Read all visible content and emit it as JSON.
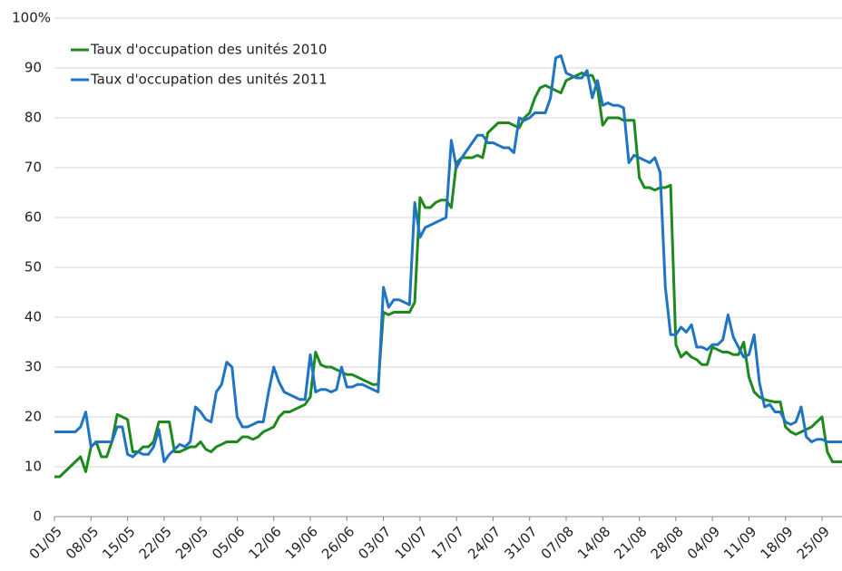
{
  "chart_data": {
    "type": "line",
    "categories": [
      "01/05",
      null,
      null,
      null,
      null,
      null,
      null,
      "08/05",
      null,
      null,
      null,
      null,
      null,
      null,
      "15/05",
      null,
      null,
      null,
      null,
      null,
      null,
      "22/05",
      null,
      null,
      null,
      null,
      null,
      null,
      "29/05",
      null,
      null,
      null,
      null,
      null,
      null,
      "05/06",
      null,
      null,
      null,
      null,
      null,
      null,
      "12/06",
      null,
      null,
      null,
      null,
      null,
      null,
      "19/06",
      null,
      null,
      null,
      null,
      null,
      null,
      "26/06",
      null,
      null,
      null,
      null,
      null,
      null,
      "03/07",
      null,
      null,
      null,
      null,
      null,
      null,
      "10/07",
      null,
      null,
      null,
      null,
      null,
      null,
      "17/07",
      null,
      null,
      null,
      null,
      null,
      null,
      "24/07",
      null,
      null,
      null,
      null,
      null,
      null,
      "31/07",
      null,
      null,
      null,
      null,
      null,
      null,
      "07/08",
      null,
      null,
      null,
      null,
      null,
      null,
      "14/08",
      null,
      null,
      null,
      null,
      null,
      null,
      "21/08",
      null,
      null,
      null,
      null,
      null,
      null,
      "28/08",
      null,
      null,
      null,
      null,
      null,
      null,
      "04/09",
      null,
      null,
      null,
      null,
      null,
      null,
      "11/09",
      null,
      null,
      null,
      null,
      null,
      null,
      "18/09",
      null,
      null,
      null,
      null,
      null,
      null,
      "25/09",
      null,
      null,
      null,
      null
    ],
    "series": [
      {
        "name": "Taux d'occupation des unités 2010",
        "color": "#1e8a1e",
        "values": [
          8,
          8,
          9,
          10,
          11,
          12,
          9,
          14,
          15,
          12,
          12,
          15,
          20.5,
          20,
          19.5,
          13,
          13,
          14,
          14,
          15,
          19,
          19,
          19,
          13,
          13,
          13.5,
          14,
          14,
          15,
          13.5,
          13,
          14,
          14.5,
          15,
          15,
          15,
          16,
          16,
          15.5,
          16,
          17,
          17.5,
          18,
          20,
          21,
          21,
          21.5,
          22,
          22.5,
          24,
          33,
          30.5,
          30,
          30,
          29.5,
          29,
          28.5,
          28.5,
          28,
          27.5,
          27,
          26.5,
          26.5,
          41,
          40.5,
          41,
          41,
          41,
          41,
          43,
          64,
          62,
          62,
          63,
          63.5,
          63.5,
          62,
          71,
          72,
          72,
          72,
          72.5,
          72,
          77,
          78,
          79,
          79,
          79,
          78.5,
          78,
          80,
          81,
          84,
          86,
          86.5,
          86,
          85.5,
          85,
          87.5,
          88,
          88.5,
          89,
          88.5,
          88.5,
          86,
          78.5,
          80,
          80,
          80,
          79.5,
          79.5,
          79.5,
          68,
          66,
          66,
          65.5,
          66,
          66,
          66.5,
          34.5,
          32,
          33,
          32,
          31.5,
          30.5,
          30.5,
          34,
          33.5,
          33,
          33,
          32.5,
          32.5,
          35,
          28,
          25,
          24,
          23.5,
          23.2,
          23,
          23,
          18,
          17,
          16.5,
          17,
          17.5,
          18,
          19,
          20,
          13,
          11,
          11,
          11
        ]
      },
      {
        "name": "Taux d'occupation des unités 2011",
        "color": "#1f74c4",
        "values": [
          17,
          17,
          17,
          17,
          17,
          18,
          21,
          14,
          15,
          15,
          15,
          15,
          18,
          18,
          12.5,
          12,
          13,
          12.5,
          12.5,
          14,
          17.5,
          11,
          12.5,
          13.5,
          14.5,
          14,
          15,
          22,
          21,
          19.5,
          19,
          25,
          26.5,
          31,
          30,
          20,
          18,
          18,
          18.5,
          19,
          19,
          25,
          30,
          27,
          25,
          24.5,
          24,
          23.5,
          23.5,
          32.5,
          25,
          25.5,
          25.5,
          25,
          25.5,
          30,
          26,
          26,
          26.5,
          26.5,
          26,
          25.5,
          25,
          46,
          42,
          43.5,
          43.5,
          43,
          42.5,
          63,
          56,
          58,
          58.5,
          59,
          59.5,
          60,
          75.5,
          70,
          72,
          73.5,
          75,
          76.5,
          76.5,
          75,
          75,
          74.5,
          74,
          74,
          73,
          80,
          79.5,
          80,
          81,
          81,
          81,
          84,
          92,
          92.5,
          89,
          88.5,
          88,
          88,
          89.5,
          84,
          87.5,
          82.5,
          83,
          82.5,
          82.5,
          82,
          71,
          72.5,
          72,
          71.5,
          71,
          72,
          69,
          46,
          36.5,
          36.5,
          38,
          37,
          38.5,
          34,
          34,
          33.5,
          34.5,
          34.5,
          35.5,
          40.5,
          36,
          34,
          32,
          32.5,
          36.5,
          27,
          22,
          22.5,
          21,
          21,
          19,
          18.5,
          19,
          22,
          16,
          15,
          15.5,
          15.5,
          15,
          15,
          15,
          15
        ]
      }
    ],
    "ylim": [
      0,
      100
    ],
    "yticks": [
      0,
      10,
      20,
      30,
      40,
      50,
      60,
      70,
      80,
      90,
      {
        "value": 100,
        "label": "100%"
      }
    ],
    "grid": true,
    "legend": "top-left"
  }
}
